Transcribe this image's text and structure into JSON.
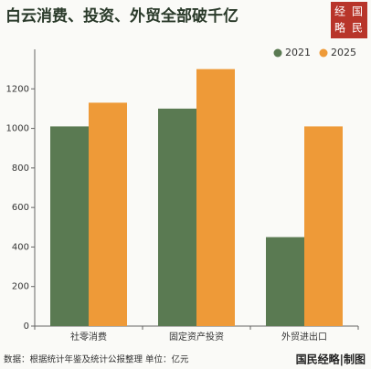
{
  "chart_data": {
    "type": "bar",
    "title": "白云消费、投资、外贸全部破千亿",
    "categories": [
      "社零消费",
      "固定资产投资",
      "外贸进出口"
    ],
    "series": [
      {
        "name": "2021",
        "color": "#5a7a52",
        "values": [
          1010,
          1100,
          450
        ]
      },
      {
        "name": "2025",
        "color": "#ee9a38",
        "values": [
          1130,
          1300,
          1010
        ]
      }
    ],
    "ylim": [
      0,
      1400
    ],
    "yticks": [
      0,
      200,
      400,
      600,
      800,
      1000,
      1200
    ],
    "grid": false,
    "legend": "top-right"
  },
  "seal": [
    "经",
    "国",
    "略",
    "民"
  ],
  "footer": {
    "source": "数据：根据统计年鉴及统计公报整理 单位：亿元",
    "brand": "国民经略|制图"
  }
}
